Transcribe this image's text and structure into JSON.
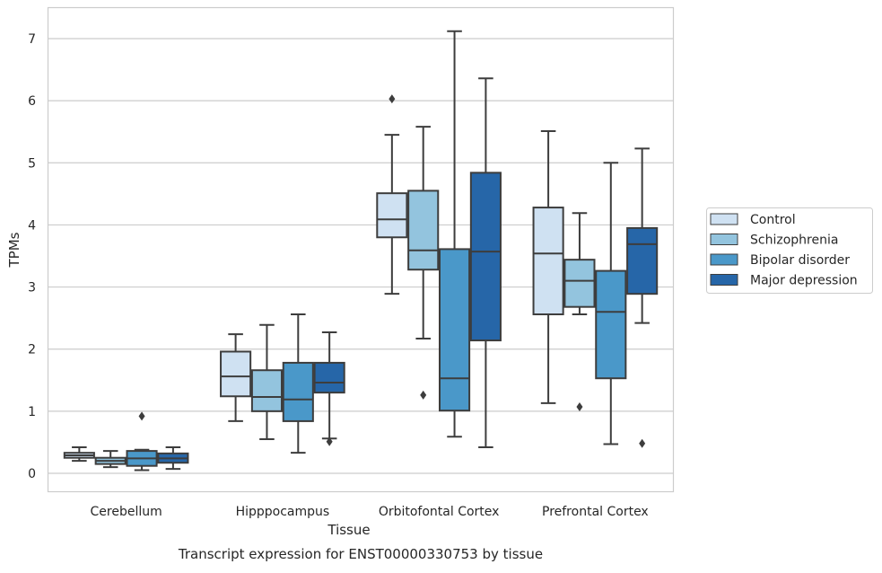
{
  "chart_data": {
    "type": "box",
    "xlabel": "Tissue",
    "ylabel": "TPMs",
    "caption": "Transcript expression for ENST00000330753 by tissue",
    "ylim": [
      -0.3,
      7.5
    ],
    "yticks": [
      0,
      1,
      2,
      3,
      4,
      5,
      6,
      7
    ],
    "grid": "horizontal",
    "legend_position": "outside-right",
    "categories": [
      "Cerebellum",
      "Hipppocampus",
      "Orbitofontal Cortex",
      "Prefrontal Cortex"
    ],
    "series": [
      {
        "name": "Control",
        "color": "#cfe1f2",
        "boxes": [
          {
            "whislo": 0.2,
            "q1": 0.25,
            "med": 0.29,
            "q3": 0.33,
            "whishi": 0.42,
            "fliers": []
          },
          {
            "whislo": 0.84,
            "q1": 1.24,
            "med": 1.56,
            "q3": 1.96,
            "whishi": 2.24,
            "fliers": []
          },
          {
            "whislo": 2.89,
            "q1": 3.8,
            "med": 4.09,
            "q3": 4.51,
            "whishi": 5.45,
            "fliers": [
              6.03
            ]
          },
          {
            "whislo": 1.13,
            "q1": 2.56,
            "med": 3.54,
            "q3": 4.28,
            "whishi": 5.51,
            "fliers": []
          }
        ]
      },
      {
        "name": "Schizophrenia",
        "color": "#93c4de",
        "boxes": [
          {
            "whislo": 0.1,
            "q1": 0.15,
            "med": 0.2,
            "q3": 0.25,
            "whishi": 0.36,
            "fliers": []
          },
          {
            "whislo": 0.55,
            "q1": 1.0,
            "med": 1.23,
            "q3": 1.66,
            "whishi": 2.39,
            "fliers": []
          },
          {
            "whislo": 2.17,
            "q1": 3.28,
            "med": 3.59,
            "q3": 4.55,
            "whishi": 5.58,
            "fliers": [
              1.26
            ]
          },
          {
            "whislo": 2.56,
            "q1": 2.68,
            "med": 3.1,
            "q3": 3.44,
            "whishi": 4.19,
            "fliers": [
              1.07
            ]
          }
        ]
      },
      {
        "name": "Bipolar disorder",
        "color": "#4a98c9",
        "boxes": [
          {
            "whislo": 0.05,
            "q1": 0.12,
            "med": 0.24,
            "q3": 0.36,
            "whishi": 0.38,
            "fliers": [
              0.92
            ]
          },
          {
            "whislo": 0.33,
            "q1": 0.84,
            "med": 1.19,
            "q3": 1.78,
            "whishi": 2.56,
            "fliers": []
          },
          {
            "whislo": 0.59,
            "q1": 1.01,
            "med": 1.53,
            "q3": 3.61,
            "whishi": 7.12,
            "fliers": []
          },
          {
            "whislo": 0.47,
            "q1": 1.53,
            "med": 2.6,
            "q3": 3.26,
            "whishi": 5.0,
            "fliers": []
          }
        ]
      },
      {
        "name": "Major depression",
        "color": "#2666a8",
        "boxes": [
          {
            "whislo": 0.07,
            "q1": 0.17,
            "med": 0.24,
            "q3": 0.32,
            "whishi": 0.42,
            "fliers": []
          },
          {
            "whislo": 0.56,
            "q1": 1.3,
            "med": 1.46,
            "q3": 1.78,
            "whishi": 2.27,
            "fliers": [
              0.51
            ]
          },
          {
            "whislo": 0.42,
            "q1": 2.14,
            "med": 3.57,
            "q3": 4.84,
            "whishi": 6.36,
            "fliers": []
          },
          {
            "whislo": 2.42,
            "q1": 2.89,
            "med": 3.69,
            "q3": 3.95,
            "whishi": 5.23,
            "fliers": [
              0.48
            ]
          }
        ]
      }
    ]
  }
}
